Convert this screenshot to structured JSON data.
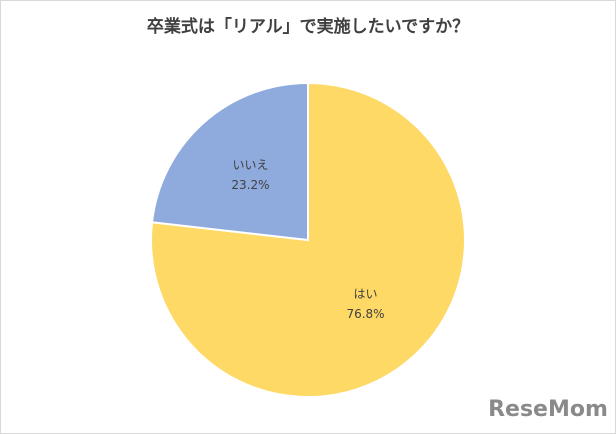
{
  "chart_data": {
    "type": "pie",
    "title": "卒業式は「リアル」で実施したいですか？",
    "categories": [
      "はい",
      "いいえ"
    ],
    "values": [
      76.8,
      23.2
    ],
    "value_labels": [
      "76.8%",
      "23.2%"
    ],
    "colors": [
      "#FFD966",
      "#8FAADC"
    ],
    "watermark": "ReseMom"
  }
}
